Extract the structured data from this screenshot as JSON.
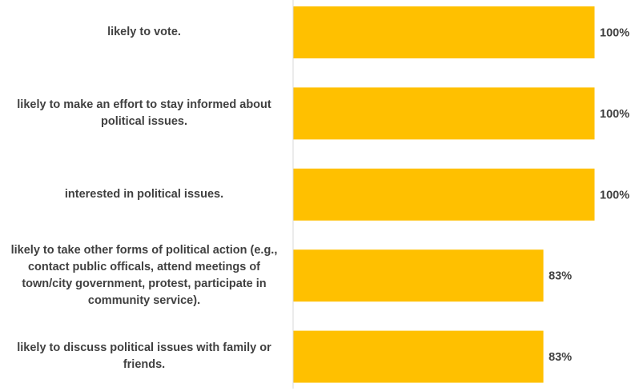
{
  "chart_data": {
    "type": "bar",
    "orientation": "horizontal",
    "categories": [
      "likely to vote.",
      "likely to make an effort to stay informed about political issues.",
      "interested in political issues.",
      "likely to take other forms of political action (e.g., contact public officals, attend meetings of town/city government, protest, participate in community service).",
      "likely to discuss political issues with family or friends."
    ],
    "category_lines": [
      [
        "likely to vote."
      ],
      [
        "likely to make an effort to stay informed about",
        "political issues."
      ],
      [
        "interested in political issues."
      ],
      [
        "likely to take other forms of political action (e.g.,",
        "contact public officals, attend meetings of",
        "town/city government, protest, participate in",
        "community service)."
      ],
      [
        "likely to discuss political issues with family or",
        "friends."
      ]
    ],
    "values": [
      100,
      100,
      100,
      83,
      83
    ],
    "value_labels": [
      "100%",
      "100%",
      "100%",
      "83%",
      "83%"
    ],
    "xlim": [
      0,
      100
    ],
    "grid": false,
    "bar_color": "#FFC000",
    "axis_color": "#D9D9D9"
  }
}
